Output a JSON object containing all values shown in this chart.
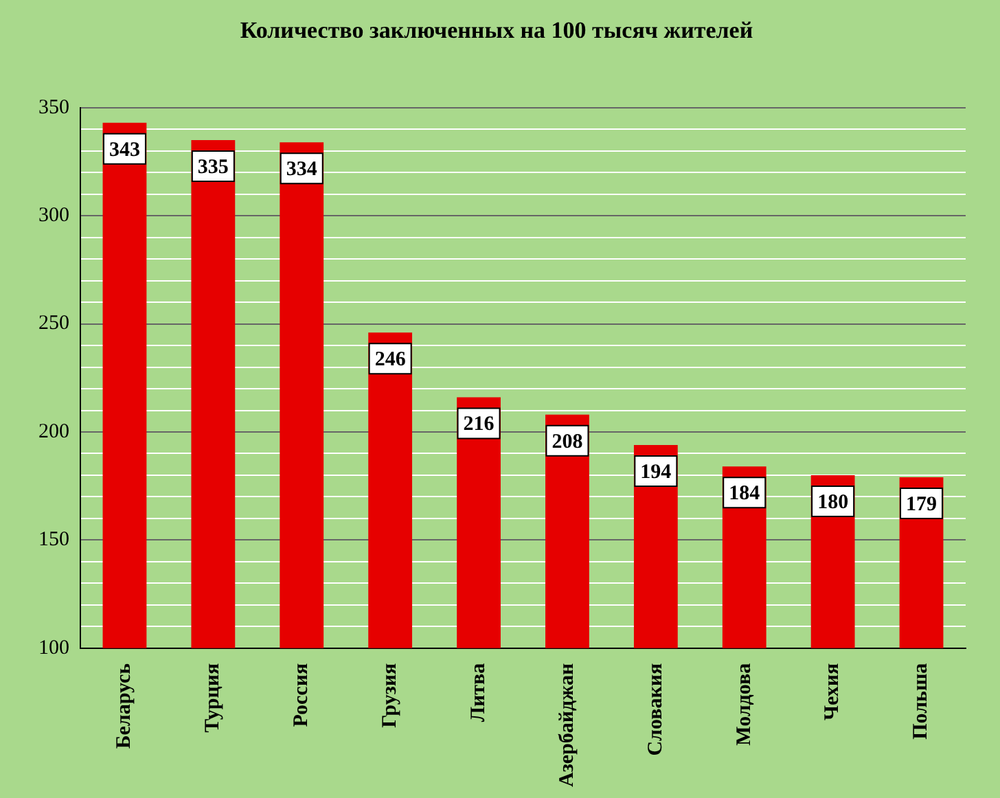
{
  "chart_data": {
    "type": "bar",
    "title": "Количество заключенных на 100 тысяч жителей",
    "categories": [
      "Беларусь",
      "Турция",
      "Россия",
      "Грузия",
      "Литва",
      "Азербайджан",
      "Словакия",
      "Молдова",
      "Чехия",
      "Польша"
    ],
    "values": [
      343,
      335,
      334,
      246,
      216,
      208,
      194,
      184,
      180,
      179
    ],
    "color": "#e60000",
    "ylim": [
      100,
      350
    ],
    "yticks": [
      100,
      {
        "value": 110,
        "label": null
      },
      {
        "value": 120,
        "label": null
      },
      {
        "value": 130,
        "label": null
      },
      {
        "value": 140,
        "label": null
      },
      150,
      {
        "value": 160,
        "label": null
      },
      {
        "value": 170,
        "label": null
      },
      {
        "value": 180,
        "label": null
      },
      {
        "value": 190,
        "label": null
      },
      200,
      {
        "value": 210,
        "label": null
      },
      {
        "value": 220,
        "label": null
      },
      {
        "value": 230,
        "label": null
      },
      {
        "value": 240,
        "label": null
      },
      250,
      {
        "value": 260,
        "label": null
      },
      {
        "value": 270,
        "label": null
      },
      {
        "value": 280,
        "label": null
      },
      {
        "value": 290,
        "label": null
      },
      300,
      {
        "value": 310,
        "label": null
      },
      {
        "value": 320,
        "label": null
      },
      {
        "value": 330,
        "label": null
      },
      {
        "value": 340,
        "label": null
      },
      350
    ],
    "grid": true,
    "data_labels": true
  }
}
